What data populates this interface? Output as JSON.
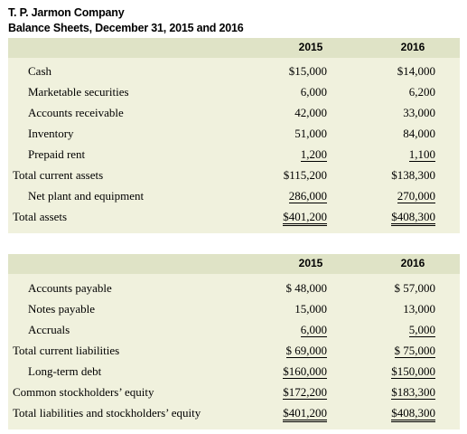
{
  "title": {
    "company": "T. P. Jarmon Company",
    "subtitle": "Balance Sheets, December 31, 2015 and 2016"
  },
  "years": [
    "2015",
    "2016"
  ],
  "assets": {
    "rows": [
      {
        "label": "Cash",
        "v2015": "$15,000",
        "v2016": "$14,000"
      },
      {
        "label": "Marketable securities",
        "v2015": "6,000",
        "v2016": "6,200"
      },
      {
        "label": "Accounts receivable",
        "v2015": "42,000",
        "v2016": "33,000"
      },
      {
        "label": "Inventory",
        "v2015": "51,000",
        "v2016": "84,000"
      },
      {
        "label": "Prepaid rent",
        "v2015": "1,200",
        "v2016": "1,100"
      },
      {
        "label": "Total current assets",
        "v2015": "$115,200",
        "v2016": "$138,300"
      },
      {
        "label": "Net plant and equipment",
        "v2015": "286,000",
        "v2016": "270,000"
      },
      {
        "label": "Total assets",
        "v2015": "$401,200",
        "v2016": "$408,300"
      }
    ]
  },
  "liabilities": {
    "rows": [
      {
        "label": "Accounts payable",
        "v2015": "$ 48,000",
        "v2016": "$ 57,000"
      },
      {
        "label": "Notes payable",
        "v2015": "15,000",
        "v2016": "13,000"
      },
      {
        "label": "Accruals",
        "v2015": "6,000",
        "v2016": "5,000"
      },
      {
        "label": "Total current liabilities",
        "v2015": "$ 69,000",
        "v2016": "$ 75,000"
      },
      {
        "label": "Long-term debt",
        "v2015": "$160,000",
        "v2016": "$150,000"
      },
      {
        "label": "Common stockholders’ equity",
        "v2015": "$172,200",
        "v2016": "$183,300"
      },
      {
        "label": "Total liabilities and stockholders’ equity",
        "v2015": "$401,200",
        "v2016": "$408,300"
      }
    ]
  }
}
